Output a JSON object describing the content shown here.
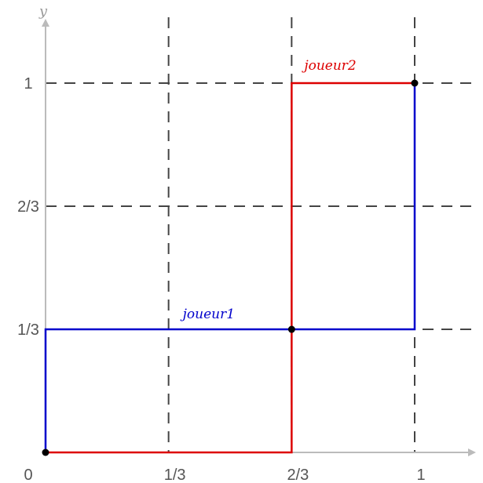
{
  "chart_data": {
    "type": "line",
    "axis_label_y": "y",
    "x_ticks": [
      {
        "label": "0",
        "value": 0
      },
      {
        "label": "1/3",
        "value": 0.3333
      },
      {
        "label": "2/3",
        "value": 0.6667
      },
      {
        "label": "1",
        "value": 1
      }
    ],
    "y_ticks": [
      {
        "label": "1/3",
        "value": 0.3333
      },
      {
        "label": "2/3",
        "value": 0.6667
      },
      {
        "label": "1",
        "value": 1
      }
    ],
    "xlim": [
      0,
      1.17
    ],
    "ylim": [
      0,
      1.1
    ],
    "grid_x": [
      0.3333,
      0.6667,
      1
    ],
    "grid_y": [
      0.3333,
      0.6667,
      1
    ],
    "series": [
      {
        "name": "joueur1",
        "color": "#0000cc",
        "points": [
          [
            0,
            0
          ],
          [
            0,
            0.3333
          ],
          [
            1,
            0.3333
          ],
          [
            1,
            1
          ]
        ]
      },
      {
        "name": "joueur2",
        "color": "#dd0000",
        "points": [
          [
            0,
            0
          ],
          [
            0.6667,
            0
          ],
          [
            0.6667,
            1
          ],
          [
            1,
            1
          ]
        ]
      }
    ],
    "equilibrium_points": [
      [
        0,
        0
      ],
      [
        0.6667,
        0.3333
      ],
      [
        1,
        1
      ]
    ]
  }
}
